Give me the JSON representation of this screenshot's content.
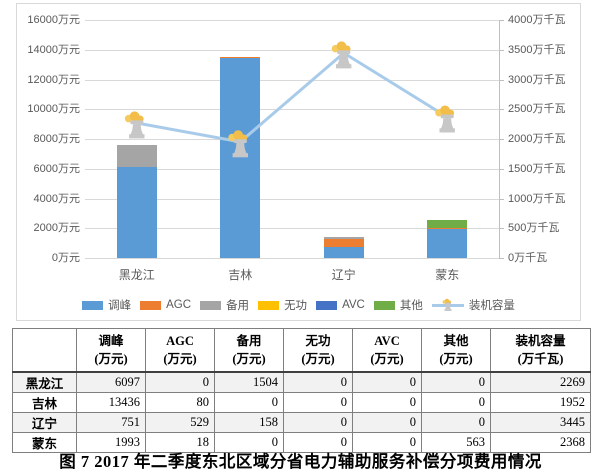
{
  "figure_caption": "图 7  2017 年二季度东北区域分省电力辅助服务补偿分项费用情况",
  "chart_data": {
    "type": "bar",
    "subtype": "stacked-column-with-line-combo",
    "categories": [
      "黑龙江",
      "吉林",
      "辽宁",
      "蒙东"
    ],
    "series": [
      {
        "name": "调峰",
        "type": "bar",
        "axis": "left",
        "color": "#5B9BD5",
        "values": [
          6097,
          13436,
          751,
          1993
        ]
      },
      {
        "name": "AGC",
        "type": "bar",
        "axis": "left",
        "color": "#ED7D31",
        "values": [
          0,
          80,
          529,
          18
        ]
      },
      {
        "name": "备用",
        "type": "bar",
        "axis": "left",
        "color": "#A5A5A5",
        "values": [
          1504,
          0,
          158,
          0
        ]
      },
      {
        "name": "无功",
        "type": "bar",
        "axis": "left",
        "color": "#FFC000",
        "values": [
          0,
          0,
          0,
          0
        ]
      },
      {
        "name": "AVC",
        "type": "bar",
        "axis": "left",
        "color": "#4472C4",
        "values": [
          0,
          0,
          0,
          0
        ]
      },
      {
        "name": "其他",
        "type": "bar",
        "axis": "left",
        "color": "#70AD47",
        "values": [
          0,
          0,
          0,
          563
        ]
      },
      {
        "name": "装机容量",
        "type": "line",
        "axis": "right",
        "color": "#A9CBEA",
        "marker": "cooling-tower-icon",
        "values": [
          2269,
          1952,
          3445,
          2368
        ]
      }
    ],
    "left_axis": {
      "min": 0,
      "max": 16000,
      "step": 2000,
      "unit": "万元"
    },
    "right_axis": {
      "min": 0,
      "max": 4000,
      "step": 500,
      "unit": "万千瓦"
    },
    "grid": true,
    "legend_position": "bottom",
    "marker_colors": {
      "tower_gray": "#C7C7C7",
      "smoke_yellow": "#F2BD49",
      "smoke_light": "#F6CB5E"
    }
  },
  "table": {
    "columns": [
      {
        "title": "",
        "unit": ""
      },
      {
        "title": "调峰",
        "unit": "(万元)"
      },
      {
        "title": "AGC",
        "unit": "(万元)"
      },
      {
        "title": "备用",
        "unit": "(万元)"
      },
      {
        "title": "无功",
        "unit": "(万元)"
      },
      {
        "title": "AVC",
        "unit": "(万元)"
      },
      {
        "title": "其他",
        "unit": "(万元)"
      },
      {
        "title": "装机容量",
        "unit": "(万千瓦)"
      }
    ],
    "rows": [
      {
        "label": "黑龙江",
        "values": [
          "6097",
          "0",
          "1504",
          "0",
          "0",
          "0",
          "2269"
        ]
      },
      {
        "label": "吉林",
        "values": [
          "13436",
          "80",
          "0",
          "0",
          "0",
          "0",
          "1952"
        ]
      },
      {
        "label": "辽宁",
        "values": [
          "751",
          "529",
          "158",
          "0",
          "0",
          "0",
          "3445"
        ]
      },
      {
        "label": "蒙东",
        "values": [
          "1993",
          "18",
          "0",
          "0",
          "0",
          "563",
          "2368"
        ]
      }
    ]
  }
}
